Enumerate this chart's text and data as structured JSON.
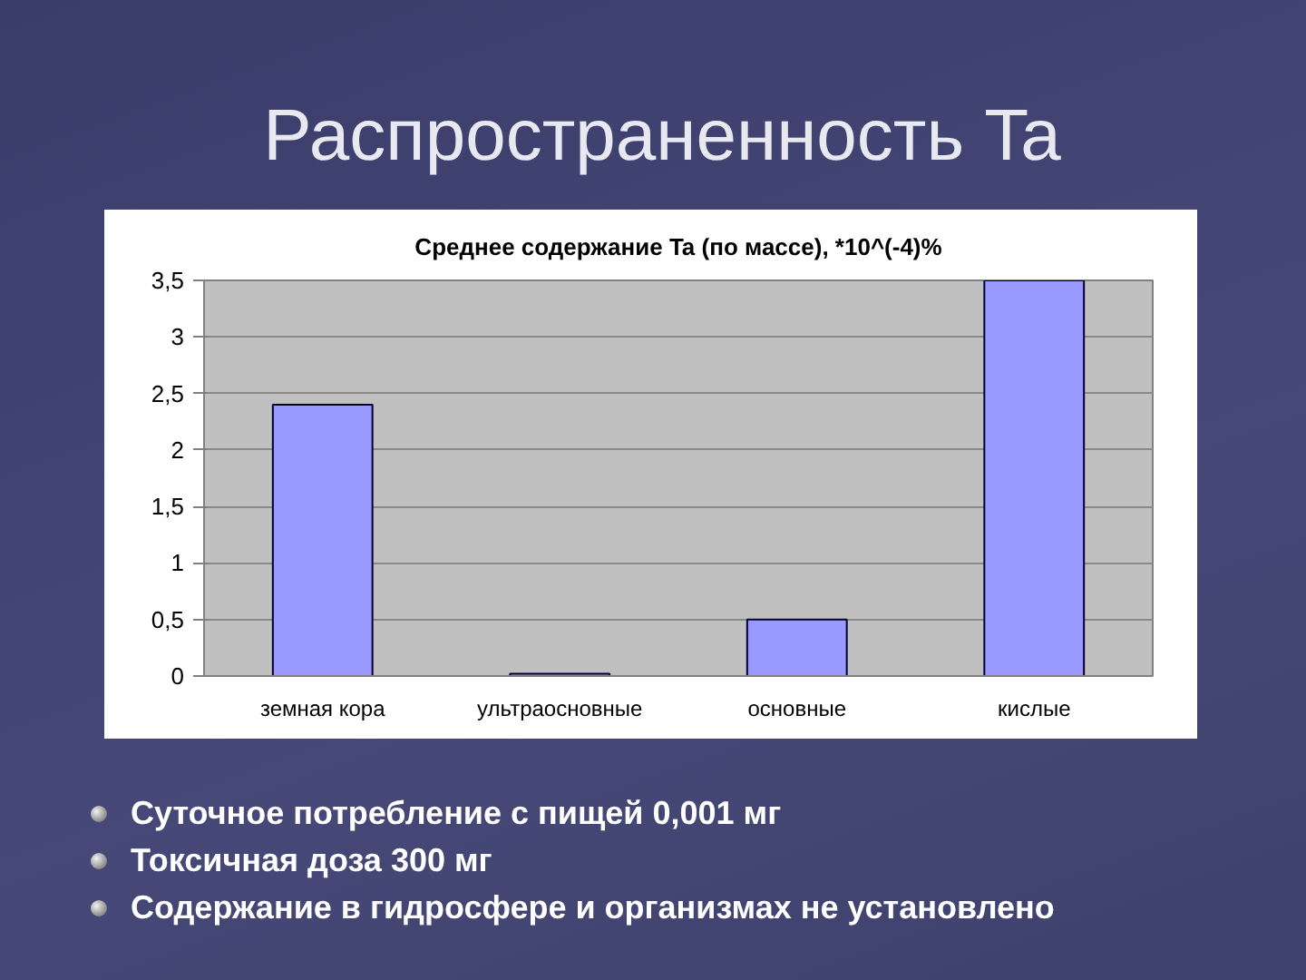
{
  "chart_data": {
    "type": "bar",
    "title": "Распространенность Ta",
    "subtitle": "Среднее содержание Ta (по массе), *10^(-4)%",
    "categories": [
      "земная кора",
      "ультраосновные",
      "основные",
      "кислые"
    ],
    "values": [
      2.4,
      0.02,
      0.5,
      3.5
    ],
    "color": "#9999ff",
    "ylim": [
      0,
      3.5
    ],
    "yticks": [
      0,
      {
        "value": 0.5,
        "label": "0,5"
      },
      1,
      {
        "value": 1.5,
        "label": "1,5"
      },
      2,
      {
        "value": 2.5,
        "label": "2,5"
      },
      3,
      {
        "value": 3.5,
        "label": "3,5"
      }
    ],
    "grid": "y",
    "annotations": [
      "Суточное потребление с пищей 0,001 мг",
      "Токсичная доза 300 мг",
      "Содержание в гидросфере и организмах не установлено"
    ]
  }
}
